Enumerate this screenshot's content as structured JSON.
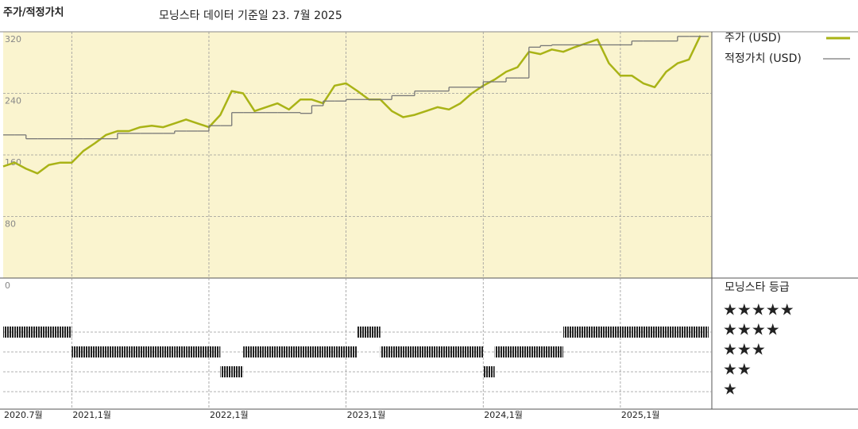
{
  "chart_data": {
    "type": "line",
    "title": "주가/적정가치",
    "subtitle": "모닝스타 데이터 기준일 23. 7월 2025",
    "x": [
      "2020-07",
      "2020-08",
      "2020-09",
      "2020-10",
      "2020-11",
      "2020-12",
      "2021-01",
      "2021-02",
      "2021-03",
      "2021-04",
      "2021-05",
      "2021-06",
      "2021-07",
      "2021-08",
      "2021-09",
      "2021-10",
      "2021-11",
      "2021-12",
      "2022-01",
      "2022-02",
      "2022-03",
      "2022-04",
      "2022-05",
      "2022-06",
      "2022-07",
      "2022-08",
      "2022-09",
      "2022-10",
      "2022-11",
      "2022-12",
      "2023-01",
      "2023-02",
      "2023-03",
      "2023-04",
      "2023-05",
      "2023-06",
      "2023-07",
      "2023-08",
      "2023-09",
      "2023-10",
      "2023-11",
      "2023-12",
      "2024-01",
      "2024-02",
      "2024-03",
      "2024-04",
      "2024-05",
      "2024-06",
      "2024-07",
      "2024-08",
      "2024-09",
      "2024-10",
      "2024-11",
      "2024-12",
      "2025-01",
      "2025-02",
      "2025-03",
      "2025-04",
      "2025-05",
      "2025-06",
      "2025-07",
      "2025-08"
    ],
    "xlim": [
      "2020-07",
      "2025-09"
    ],
    "xticks": [
      {
        "value": "2020-07",
        "label": "2020.7월"
      },
      {
        "value": "2021-01",
        "label": "2021,1월"
      },
      {
        "value": "2022-01",
        "label": "2022,1월"
      },
      {
        "value": "2023-01",
        "label": "2023,1월"
      },
      {
        "value": "2024-01",
        "label": "2024,1월"
      },
      {
        "value": "2025-01",
        "label": "2025,1월"
      }
    ],
    "ylim": [
      0,
      320
    ],
    "yticks": [
      0,
      80,
      160,
      240,
      320
    ],
    "grid": true,
    "series": [
      {
        "name": "주가 (USD)",
        "color": "#a9b316",
        "values": [
          145,
          150,
          142,
          136,
          147,
          150,
          150,
          165,
          175,
          186,
          191,
          191,
          196,
          198,
          196,
          201,
          206,
          201,
          196,
          212,
          243,
          240,
          217,
          222,
          227,
          219,
          232,
          232,
          227,
          250,
          253,
          243,
          232,
          232,
          217,
          209,
          212,
          217,
          222,
          219,
          227,
          240,
          250,
          258,
          268,
          274,
          294,
          291,
          297,
          294,
          300,
          305,
          310,
          279,
          263,
          263,
          253,
          248,
          268,
          279,
          284,
          315
        ]
      },
      {
        "name": "적정가치 (USD)",
        "color": "#777777",
        "style": "step",
        "values": [
          186,
          186,
          181,
          181,
          181,
          181,
          181,
          181,
          181,
          181,
          188,
          188,
          188,
          188,
          188,
          191,
          191,
          191,
          198,
          198,
          215,
          215,
          215,
          215,
          215,
          215,
          214,
          224,
          230,
          230,
          232,
          232,
          232,
          232,
          237,
          237,
          243,
          243,
          243,
          248,
          248,
          248,
          255,
          255,
          260,
          260,
          300,
          302,
          303,
          303,
          303,
          303,
          303,
          303,
          303,
          308,
          308,
          308,
          308,
          314,
          314,
          314
        ]
      }
    ],
    "rating": {
      "title": "모닝스타 등급",
      "color": "#222222",
      "levels": [
        {
          "value": 5,
          "label": "★★★★★"
        },
        {
          "value": 4,
          "label": "★★★★"
        },
        {
          "value": 3,
          "label": "★★★"
        },
        {
          "value": 2,
          "label": "★★"
        },
        {
          "value": 1,
          "label": "★"
        }
      ],
      "values": [
        4,
        4,
        4,
        4,
        4,
        4,
        3,
        3,
        3,
        3,
        3,
        3,
        3,
        3,
        3,
        3,
        3,
        3,
        3,
        2,
        2,
        3,
        3,
        3,
        3,
        3,
        3,
        3,
        3,
        3,
        3,
        4,
        4,
        3,
        3,
        3,
        3,
        3,
        3,
        3,
        3,
        3,
        2,
        3,
        3,
        3,
        3,
        3,
        3,
        4,
        4,
        4,
        4,
        4,
        4,
        4,
        4,
        4,
        4,
        4,
        4,
        4
      ]
    }
  }
}
